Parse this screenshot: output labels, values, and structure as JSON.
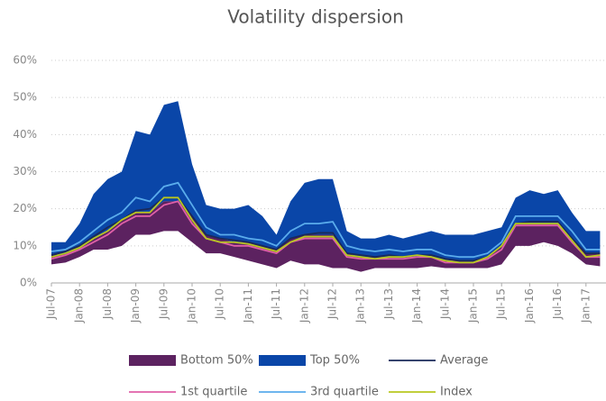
{
  "chart_data": {
    "type": "area",
    "title": "Volatility dispersion",
    "categories": [
      "Jul-07",
      null,
      "Jan-08",
      null,
      "Jul-08",
      null,
      "Jan-09",
      null,
      "Jul-09",
      null,
      "Jan-10",
      null,
      "Jul-10",
      null,
      "Jan-11",
      null,
      "Jul-11",
      null,
      "Jan-12",
      null,
      "Jul-12",
      null,
      "Jan-13",
      null,
      "Jul-13",
      null,
      "Jan-14",
      null,
      "Jul-14",
      null,
      "Jan-15",
      null,
      "Jul-15",
      null,
      "Jan-16",
      null,
      "Jul-16",
      null,
      "Jan-17",
      null
    ],
    "series": [
      {
        "name": "Bottom 50%",
        "color": "#5c2260",
        "lower": [
          5,
          5.5,
          7,
          9,
          9,
          10,
          13,
          13,
          14,
          14,
          11,
          8,
          8,
          7,
          6,
          5,
          4,
          6,
          5,
          5,
          4,
          4,
          3,
          4,
          4,
          4,
          4,
          4.5,
          4,
          4,
          4,
          4,
          5,
          10,
          10,
          11,
          10,
          8,
          5,
          4.5
        ],
        "upper": [
          7.5,
          8,
          10,
          12,
          14,
          17,
          19,
          19,
          22,
          22,
          18,
          13,
          12,
          11,
          11,
          10,
          9,
          12,
          13,
          13,
          13,
          8,
          7,
          7,
          7,
          7,
          7,
          7,
          6,
          6,
          6,
          7,
          10,
          16,
          16,
          16,
          16,
          12,
          8,
          8
        ]
      },
      {
        "name": "Top 50%",
        "color": "#0a46a8",
        "lower": [
          7.5,
          8,
          10,
          12,
          14,
          17,
          19,
          19,
          22,
          22,
          18,
          13,
          12,
          11,
          11,
          10,
          9,
          12,
          13,
          13,
          13,
          8,
          7,
          7,
          7,
          7,
          7,
          7,
          6,
          6,
          6,
          7,
          10,
          16,
          16,
          16,
          16,
          12,
          8,
          8
        ],
        "upper": [
          11,
          11,
          16,
          24,
          28,
          30,
          41,
          40,
          48,
          49,
          32,
          21,
          20,
          20,
          21,
          18,
          13,
          22,
          27,
          28,
          28,
          14,
          12,
          12,
          13,
          12,
          13,
          14,
          13,
          13,
          13,
          14,
          15,
          23,
          25,
          24,
          25,
          19,
          14,
          14
        ]
      },
      {
        "name": "Average",
        "color": "#1a2a5a",
        "values": [
          7.5,
          8.5,
          10,
          12.5,
          15,
          17,
          19.5,
          20,
          23,
          23,
          18,
          13,
          12,
          11.5,
          11,
          10,
          9,
          12,
          13,
          13.5,
          13.5,
          8,
          7.5,
          7,
          7.5,
          7,
          7.5,
          7.5,
          6.5,
          6,
          6,
          7,
          10,
          16,
          16.5,
          16.5,
          16.5,
          12,
          8,
          8
        ]
      },
      {
        "name": "1st quartile",
        "color": "#e060a8",
        "values": [
          6.5,
          7.5,
          9,
          11,
          13,
          16,
          18,
          18,
          21,
          22,
          16,
          12,
          11,
          10,
          10,
          9,
          8,
          11,
          12,
          12,
          12,
          7,
          6.5,
          6.5,
          6.5,
          6.5,
          7,
          7,
          5.5,
          5.5,
          5.5,
          6.5,
          9,
          15.5,
          15.5,
          15.5,
          15.5,
          11,
          7,
          7
        ]
      },
      {
        "name": "3rd quartile",
        "color": "#5aacec",
        "values": [
          8.5,
          9,
          11,
          14,
          17,
          19,
          23,
          22,
          26,
          27,
          21,
          15,
          13,
          13,
          12,
          11.5,
          10,
          14,
          16,
          16,
          16.5,
          10,
          9,
          8.5,
          9,
          8.5,
          9,
          9,
          7.5,
          7,
          7,
          8,
          11,
          18,
          18,
          18,
          18,
          14,
          9,
          9
        ]
      },
      {
        "name": "Index",
        "color": "#b8c820",
        "values": [
          7,
          8,
          9.5,
          12,
          14,
          17,
          19,
          19,
          23,
          23,
          17,
          12,
          11,
          11,
          10.5,
          9.5,
          8.5,
          11,
          12.5,
          12.5,
          12.5,
          7.5,
          7,
          6.5,
          7,
          7,
          7.5,
          7,
          6,
          5.5,
          5.5,
          7,
          10,
          16,
          16,
          16,
          16,
          11.5,
          7,
          7.5
        ]
      }
    ],
    "ylim": [
      0,
      60
    ],
    "yticks": [
      {
        "value": 0,
        "label": "0%"
      },
      {
        "value": 10,
        "label": "10%"
      },
      {
        "value": 20,
        "label": "20%"
      },
      {
        "value": 30,
        "label": "30%"
      },
      {
        "value": 40,
        "label": "40%"
      },
      {
        "value": 50,
        "label": "50%"
      },
      {
        "value": 60,
        "label": "60%"
      }
    ],
    "grid": true
  }
}
